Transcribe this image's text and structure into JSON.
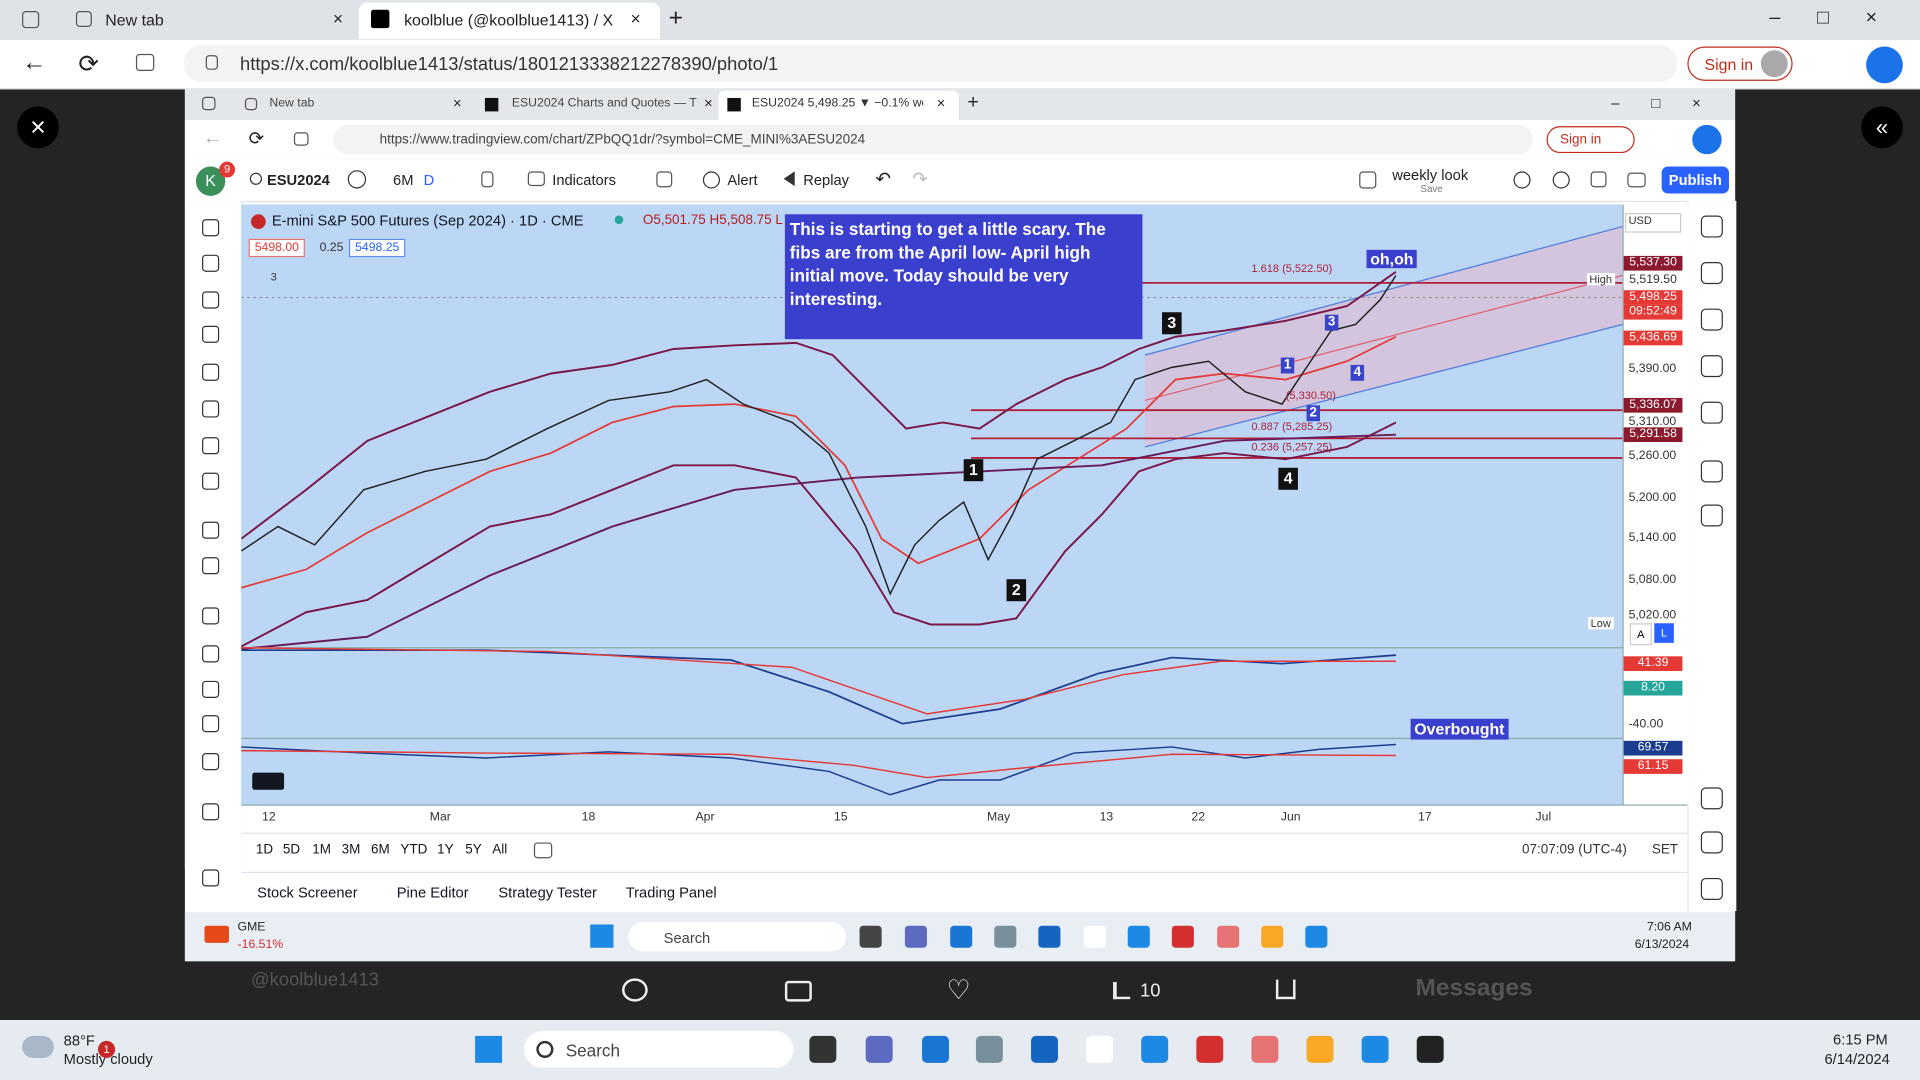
{
  "outer_browser": {
    "tabs": [
      "New tab",
      "koolblue (@koolblue1413) / X"
    ],
    "url": "https://x.com/koolblue1413/status/1801213338212278390/photo/1",
    "sign_in": "Sign in"
  },
  "inner_browser": {
    "tabs": [
      "New tab",
      "ESU2024 Charts and Quotes — T",
      "ESU2024 5,498.25 ▼ −0.1% weel"
    ],
    "url": "https://www.tradingview.com/chart/ZPbQQ1dr/?symbol=CME_MINI%3AESU2024",
    "sign_in": "Sign in"
  },
  "toolbar": {
    "avatar": "K",
    "badge": "9",
    "symbol": "ESU2024",
    "range": "6M",
    "interval": "D",
    "indicators": "Indicators",
    "alert": "Alert",
    "replay": "Replay",
    "layout": "weekly look",
    "layout_sub": "Save",
    "publish": "Publish"
  },
  "chart": {
    "title": "E-mini S&P 500 Futures (Sep 2024) · 1D · CME",
    "ohlc": "O5,501.75 H5,508.75 L",
    "bid": "5498.00",
    "spread": "0.25",
    "ask": "5498.25",
    "indicator_count": "3",
    "currency": "USD",
    "annotation": "This is starting to get a little scary. The fibs are from the April low- April high initial move. Today should be very interesting.",
    "oh_oh": "oh,oh",
    "overbought": "Overbought",
    "fib_labels": [
      "1.618 (5,522.50)",
      "(5,330.50)",
      "0.887 (5,285.25)",
      "0.236 (5,257.25)"
    ],
    "wave_labels": [
      "1",
      "2",
      "3",
      "4"
    ],
    "small_wave_labels": [
      "1",
      "2",
      "3",
      "4"
    ],
    "price_ticks": [
      "5,390.00",
      "5,310.00",
      "5,260.00",
      "5,200.00",
      "5,140.00",
      "5,080.00",
      "5,020.00"
    ],
    "price_tags": [
      "5,537.30",
      "5,519.50",
      "5,498.25",
      "09:52:49",
      "5,436.69",
      "5,336.07",
      "5,291.58"
    ],
    "high_label": "High",
    "low_label": "Low",
    "macd_tags": [
      "41.39",
      "8.20"
    ],
    "macd_tick": "-40.00",
    "rsi_tags": [
      "69.57",
      "61.15"
    ],
    "time_ticks": [
      "12",
      "Mar",
      "18",
      "Apr",
      "15",
      "May",
      "13",
      "22",
      "Jun",
      "17",
      "Jul"
    ],
    "ranges": [
      "1D",
      "5D",
      "1M",
      "3M",
      "6M",
      "YTD",
      "1Y",
      "5Y",
      "All"
    ],
    "clock": "07:07:09 (UTC-4)",
    "session": "SET"
  },
  "bottom_tabs": [
    "Stock Screener",
    "Pine Editor",
    "Strategy Tester",
    "Trading Panel"
  ],
  "inner_taskbar": {
    "ticker": "GME",
    "change": "-16.51%",
    "search": "Search",
    "time": "7:06 AM",
    "date": "6/13/2024"
  },
  "post": {
    "handle": "@koolblue1413",
    "views": "10",
    "messages": "Messages"
  },
  "taskbar": {
    "temp": "88°F",
    "weather": "Mostly cloudy",
    "badge": "1",
    "search": "Search",
    "time": "6:15 PM",
    "date": "6/14/2024"
  }
}
